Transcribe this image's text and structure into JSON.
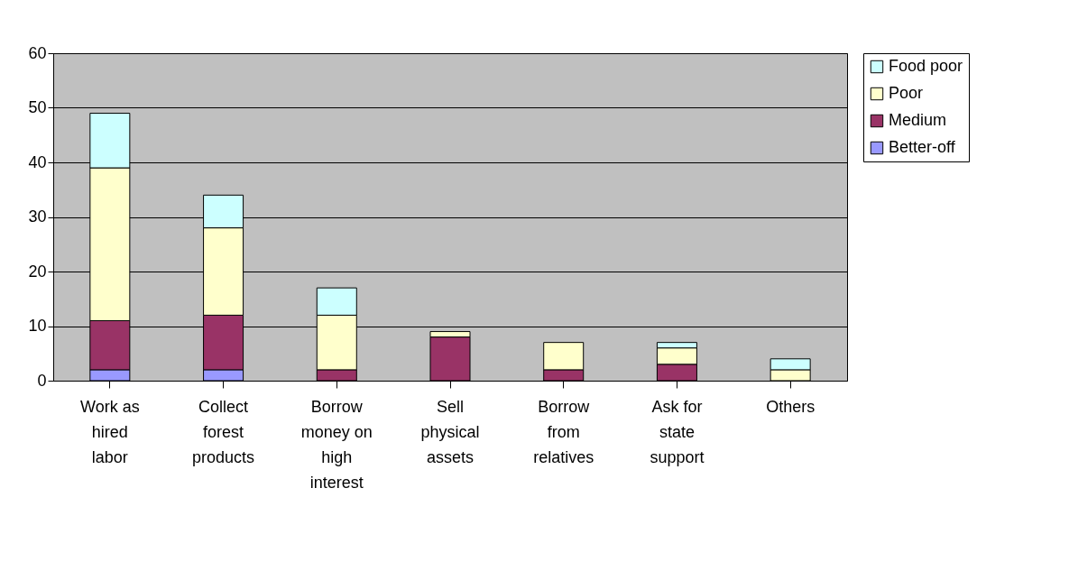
{
  "chart_data": {
    "type": "bar",
    "stacked": true,
    "categories": [
      "Work as hired labor",
      "Collect forest products",
      "Borrow money on high interest",
      "Sell physical assets",
      "Borrow from relatives",
      "Ask for state support",
      "Others"
    ],
    "series": [
      {
        "name": "Better-off",
        "color": "#9999ff",
        "values": [
          2,
          2,
          null,
          null,
          null,
          null,
          null
        ]
      },
      {
        "name": "Medium",
        "color": "#993366",
        "values": [
          9,
          10,
          2,
          8,
          2,
          3,
          null
        ]
      },
      {
        "name": "Poor",
        "color": "#ffffcc",
        "values": [
          28,
          16,
          10,
          1,
          5,
          3,
          2
        ]
      },
      {
        "name": "Food poor",
        "color": "#ccffff",
        "values": [
          10,
          6,
          5,
          null,
          null,
          1,
          2
        ]
      }
    ],
    "ylim": [
      0,
      60
    ],
    "yticks": [
      0,
      10,
      20,
      30,
      40,
      50,
      60
    ],
    "grid": "y",
    "legend": "right"
  }
}
